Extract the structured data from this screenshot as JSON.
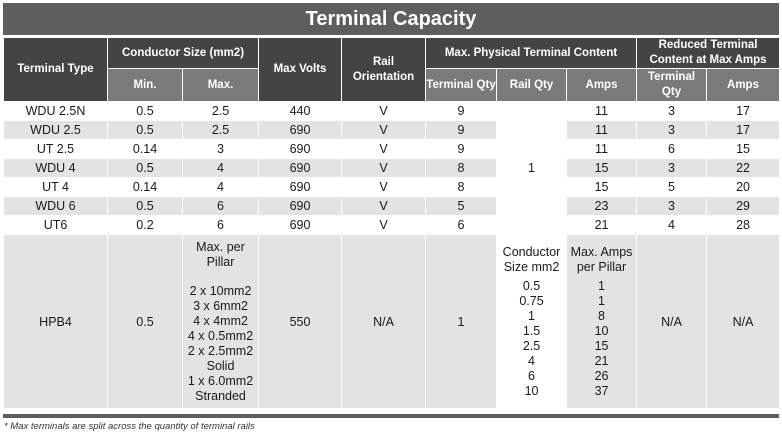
{
  "title": "Terminal Capacity",
  "headers": {
    "terminal_type": "Terminal Type",
    "conductor_size": "Conductor Size (mm2)",
    "min": "Min.",
    "max": "Max.",
    "max_volts": "Max Volts",
    "rail_orientation": "Rail Orientation",
    "max_physical": "Max. Physical Terminal Content",
    "terminal_qty": "Terminal Qty",
    "rail_qty": "Rail Qty",
    "amps": "Amps",
    "reduced": "Reduced Terminal Content at Max Amps",
    "reduced_terminal_qty": "Terminal Qty",
    "reduced_amps": "Amps"
  },
  "rows": [
    {
      "type": "WDU 2.5N",
      "min": "0.5",
      "max": "2.5",
      "volts": "440",
      "orientation": "V",
      "terminal_qty": "9",
      "amps": "11",
      "reduced_qty": "3",
      "reduced_amps": "17"
    },
    {
      "type": "WDU 2.5",
      "min": "0.5",
      "max": "2.5",
      "volts": "690",
      "orientation": "V",
      "terminal_qty": "9",
      "amps": "11",
      "reduced_qty": "3",
      "reduced_amps": "17"
    },
    {
      "type": "UT 2.5",
      "min": "0.14",
      "max": "3",
      "volts": "690",
      "orientation": "V",
      "terminal_qty": "9",
      "amps": "11",
      "reduced_qty": "6",
      "reduced_amps": "15"
    },
    {
      "type": "WDU 4",
      "min": "0.5",
      "max": "4",
      "volts": "690",
      "orientation": "V",
      "terminal_qty": "8",
      "amps": "15",
      "reduced_qty": "3",
      "reduced_amps": "22"
    },
    {
      "type": "UT 4",
      "min": "0.14",
      "max": "4",
      "volts": "690",
      "orientation": "V",
      "terminal_qty": "8",
      "amps": "15",
      "reduced_qty": "5",
      "reduced_amps": "20"
    },
    {
      "type": "WDU 6",
      "min": "0.5",
      "max": "6",
      "volts": "690",
      "orientation": "V",
      "terminal_qty": "5",
      "amps": "23",
      "reduced_qty": "3",
      "reduced_amps": "29"
    },
    {
      "type": "UT6",
      "min": "0.2",
      "max": "6",
      "volts": "690",
      "orientation": "V",
      "terminal_qty": "6",
      "amps": "21",
      "reduced_qty": "4",
      "reduced_amps": "28"
    }
  ],
  "rail_qty": "1",
  "hpb4": {
    "type": "HPB4",
    "min": "0.5",
    "max_header": "Max. per Pillar",
    "max_list": [
      "2 x 10mm2",
      "3 x 6mm2",
      "4 x 4mm2",
      "4 x 0.5mm2",
      "2 x 2.5mm2",
      "Solid",
      "1 x 6.0mm2",
      "Stranded"
    ],
    "volts": "550",
    "orientation": "N/A",
    "terminal_qty": "1",
    "conductor_header": "Conductor Size mm2",
    "conductor_sizes": [
      "0.5",
      "0.75",
      "1",
      "1.5",
      "2.5",
      "4",
      "6",
      "10"
    ],
    "amps_header": "Max. Amps per Pillar",
    "amps_list": [
      "1",
      "1",
      "8",
      "10",
      "15",
      "21",
      "26",
      "37"
    ],
    "reduced_qty": "N/A",
    "reduced_amps": "N/A"
  },
  "footnote": "* Max terminals are split across the quantity of terminal rails"
}
